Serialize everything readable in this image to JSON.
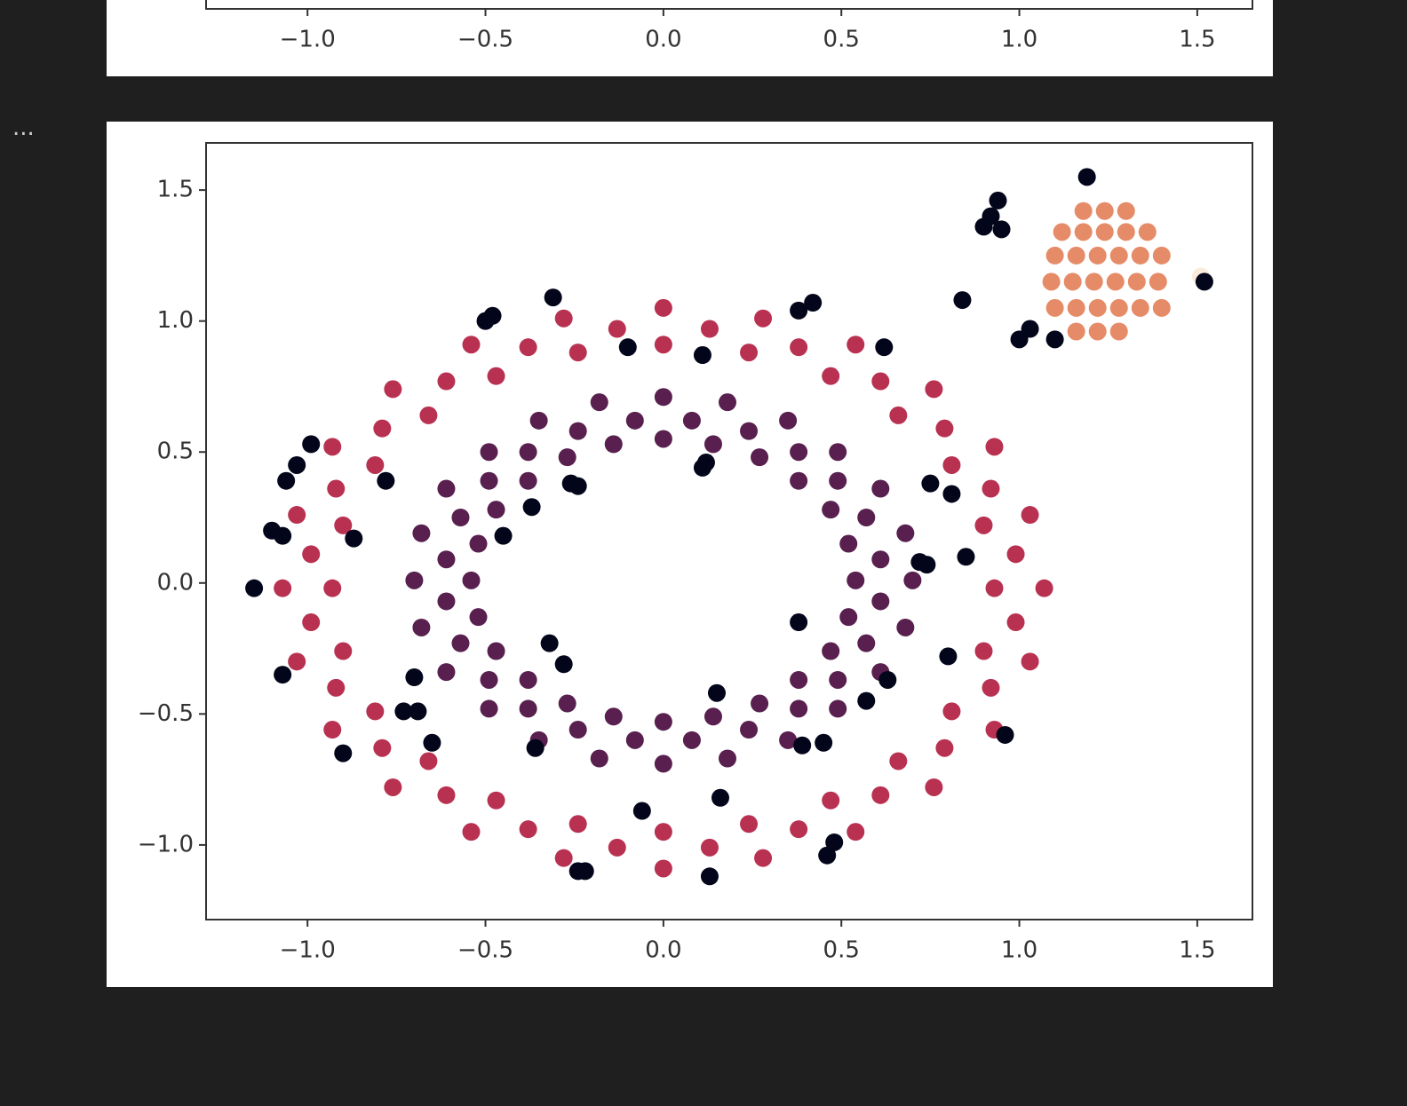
{
  "chart_data": [
    {
      "type": "axis",
      "xlim": [
        -1.285,
        1.655
      ],
      "xticks": [
        {
          "value": -1,
          "label": "−1.0"
        },
        {
          "value": -0.5,
          "label": "−0.5"
        },
        {
          "value": 0,
          "label": "0.0"
        },
        {
          "value": 0.5,
          "label": "0.5"
        },
        {
          "value": 1,
          "label": "1.0"
        },
        {
          "value": 1.5,
          "label": "1.5"
        }
      ]
    },
    {
      "type": "scatter",
      "xlim": [
        -1.285,
        1.655
      ],
      "ylim": [
        -1.285,
        1.68
      ],
      "xticks": [
        {
          "value": -1,
          "label": "−1.0"
        },
        {
          "value": -0.5,
          "label": "−0.5"
        },
        {
          "value": 0,
          "label": "0.0"
        },
        {
          "value": 0.5,
          "label": "0.5"
        },
        {
          "value": 1,
          "label": "1.0"
        },
        {
          "value": 1.5,
          "label": "1.5"
        }
      ],
      "yticks": [
        {
          "value": -1,
          "label": "−1.0"
        },
        {
          "value": -0.5,
          "label": "−0.5"
        },
        {
          "value": 0,
          "label": "0.0"
        },
        {
          "value": 0.5,
          "label": "0.5"
        },
        {
          "value": 1,
          "label": "1.0"
        },
        {
          "value": 1.5,
          "label": "1.5"
        }
      ],
      "series": [
        {
          "color": "#b93151",
          "x": [
            0.93,
            0.9,
            0.81,
            0.66,
            0.47,
            0.24,
            0,
            -0.24,
            -0.47,
            -0.66,
            -0.81,
            -0.9,
            -0.93,
            -0.9,
            -0.81,
            -0.66,
            -0.47,
            -0.24,
            0,
            0.24,
            0.47,
            0.66,
            0.81,
            0.9,
            1.07,
            1.03,
            0.93,
            0.76,
            0.54,
            0.28,
            0,
            -0.28,
            -0.54,
            -0.76,
            -0.93,
            -1.03,
            -1.07,
            -1.03,
            -0.93,
            -0.76,
            -0.54,
            -0.28,
            0,
            0.28,
            0.54,
            0.76,
            0.93,
            1.03,
            0.99,
            0.92,
            0.79,
            0.61,
            0.38,
            0.13,
            -0.13,
            -0.38,
            -0.61,
            -0.79,
            -0.92,
            -0.99,
            -0.99,
            -0.92,
            -0.79,
            -0.61,
            -0.38,
            -0.13,
            0.13,
            0.38,
            0.61,
            0.79,
            0.92,
            0.99
          ],
          "y": [
            -0.02,
            0.22,
            0.45,
            0.64,
            0.79,
            0.88,
            0.91,
            0.88,
            0.79,
            0.64,
            0.45,
            0.22,
            -0.02,
            -0.26,
            -0.49,
            -0.68,
            -0.83,
            -0.92,
            -0.95,
            -0.92,
            -0.83,
            -0.68,
            -0.49,
            -0.26,
            -0.02,
            0.26,
            0.52,
            0.74,
            0.91,
            1.01,
            1.05,
            1.01,
            0.91,
            0.74,
            0.52,
            0.26,
            -0.02,
            -0.3,
            -0.56,
            -0.78,
            -0.95,
            -1.05,
            -1.09,
            -1.05,
            -0.95,
            -0.78,
            -0.56,
            -0.3,
            0.11,
            0.36,
            0.59,
            0.77,
            0.9,
            0.97,
            0.97,
            0.9,
            0.77,
            0.59,
            0.36,
            0.11,
            -0.15,
            -0.4,
            -0.63,
            -0.81,
            -0.94,
            -1.01,
            -1.01,
            -0.94,
            -0.81,
            -0.63,
            -0.4,
            -0.15
          ]
        },
        {
          "color": "#581f4f",
          "x": [
            0.54,
            0.52,
            0.47,
            0.38,
            0.27,
            0.14,
            0,
            -0.14,
            -0.27,
            -0.38,
            -0.47,
            -0.52,
            -0.54,
            -0.52,
            -0.47,
            -0.38,
            -0.27,
            -0.14,
            0,
            0.14,
            0.27,
            0.38,
            0.47,
            0.52,
            0.7,
            0.68,
            0.61,
            0.49,
            0.35,
            0.18,
            0,
            -0.18,
            -0.35,
            -0.49,
            -0.61,
            -0.68,
            -0.7,
            -0.68,
            -0.61,
            -0.49,
            -0.35,
            -0.18,
            0,
            0.18,
            0.35,
            0.49,
            0.61,
            0.68,
            0.61,
            0.57,
            0.49,
            0.38,
            0.24,
            0.08,
            -0.08,
            -0.24,
            -0.38,
            -0.49,
            -0.57,
            -0.61,
            -0.61,
            -0.57,
            -0.49,
            -0.38,
            -0.24,
            -0.08,
            0.08,
            0.24,
            0.38,
            0.49,
            0.57,
            0.61
          ],
          "y": [
            0.01,
            0.15,
            0.28,
            0.39,
            0.48,
            0.53,
            0.55,
            0.53,
            0.48,
            0.39,
            0.28,
            0.15,
            0.01,
            -0.13,
            -0.26,
            -0.37,
            -0.46,
            -0.51,
            -0.53,
            -0.51,
            -0.46,
            -0.37,
            -0.26,
            -0.13,
            0.01,
            0.19,
            0.36,
            0.5,
            0.62,
            0.69,
            0.71,
            0.69,
            0.62,
            0.5,
            0.36,
            0.19,
            0.01,
            -0.17,
            -0.34,
            -0.48,
            -0.6,
            -0.67,
            -0.69,
            -0.67,
            -0.6,
            -0.48,
            -0.34,
            -0.17,
            0.09,
            0.25,
            0.39,
            0.5,
            0.58,
            0.62,
            0.62,
            0.58,
            0.5,
            0.39,
            0.25,
            0.09,
            -0.07,
            -0.23,
            -0.37,
            -0.48,
            -0.56,
            -0.6,
            -0.6,
            -0.56,
            -0.48,
            -0.37,
            -0.23,
            -0.07
          ]
        },
        {
          "color": "#e68b68",
          "x": [
            1.18,
            1.24,
            1.3,
            1.12,
            1.18,
            1.24,
            1.3,
            1.36,
            1.1,
            1.16,
            1.22,
            1.28,
            1.34,
            1.4,
            1.09,
            1.15,
            1.21,
            1.27,
            1.33,
            1.39,
            1.1,
            1.16,
            1.22,
            1.28,
            1.34,
            1.4,
            1.16,
            1.22,
            1.28
          ],
          "y": [
            1.42,
            1.42,
            1.42,
            1.34,
            1.34,
            1.34,
            1.34,
            1.34,
            1.25,
            1.25,
            1.25,
            1.25,
            1.25,
            1.25,
            1.15,
            1.15,
            1.15,
            1.15,
            1.15,
            1.15,
            1.05,
            1.05,
            1.05,
            1.05,
            1.05,
            1.05,
            0.96,
            0.96,
            0.96
          ]
        },
        {
          "color": "#faebdd",
          "x": [
            1.51
          ],
          "y": [
            1.17
          ]
        },
        {
          "color": "#03051a",
          "x": [
            1.19,
            0.94,
            0.92,
            0.9,
            0.95,
            0.84,
            1.0,
            1.03,
            1.1,
            1.52,
            -0.31,
            -0.48,
            -0.5,
            0.42,
            0.38,
            -0.1,
            0.11,
            0.62,
            -0.99,
            -1.03,
            -1.06,
            -0.78,
            -1.1,
            -1.07,
            -0.87,
            -1.15,
            -1.07,
            -0.7,
            -0.9,
            -0.73,
            -0.69,
            -0.65,
            -0.26,
            -0.24,
            -0.37,
            -0.45,
            0.12,
            0.11,
            -0.32,
            -0.28,
            -0.36,
            0.15,
            0.38,
            0.39,
            0.45,
            0.57,
            0.63,
            0.75,
            0.81,
            0.72,
            0.74,
            0.85,
            0.8,
            0.96,
            -0.06,
            0.16,
            0.48,
            0.46,
            -0.24,
            -0.22,
            0.13
          ],
          "y": [
            1.55,
            1.46,
            1.4,
            1.36,
            1.35,
            1.08,
            0.93,
            0.97,
            0.93,
            1.15,
            1.09,
            1.02,
            1.0,
            1.07,
            1.04,
            0.9,
            0.87,
            0.9,
            0.53,
            0.45,
            0.39,
            0.39,
            0.2,
            0.18,
            0.17,
            -0.02,
            -0.35,
            -0.36,
            -0.65,
            -0.49,
            -0.49,
            -0.61,
            0.38,
            0.37,
            0.29,
            0.18,
            0.46,
            0.44,
            -0.23,
            -0.31,
            -0.63,
            -0.42,
            -0.15,
            -0.62,
            -0.61,
            -0.45,
            -0.37,
            0.38,
            0.34,
            0.08,
            0.07,
            0.1,
            -0.28,
            -0.58,
            -0.87,
            -0.82,
            -0.99,
            -1.04,
            -1.1,
            -1.1,
            -1.12
          ]
        }
      ]
    }
  ]
}
